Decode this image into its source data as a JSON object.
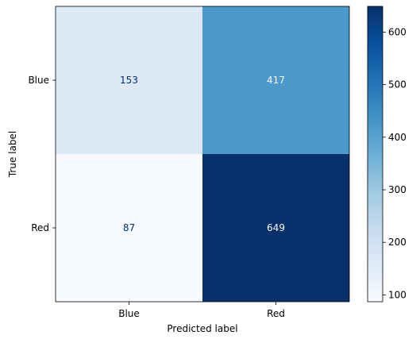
{
  "chart_data": {
    "type": "heatmap",
    "xlabel": "Predicted label",
    "ylabel": "True label",
    "x_categories": [
      "Blue",
      "Red"
    ],
    "y_categories": [
      "Blue",
      "Red"
    ],
    "values": [
      [
        153,
        417
      ],
      [
        87,
        649
      ]
    ],
    "colormap": "Blues",
    "colorbar": {
      "range": [
        87,
        649
      ],
      "ticks": [
        100,
        200,
        300,
        400,
        500,
        600
      ]
    },
    "cell_colors": [
      [
        "#dde9f6",
        "#4b9acb"
      ],
      [
        "#f7fbff",
        "#08306b"
      ]
    ],
    "text_colors": [
      [
        "#08306b",
        "#f7fbff"
      ],
      [
        "#08306b",
        "#f7fbff"
      ]
    ],
    "grid": false
  }
}
